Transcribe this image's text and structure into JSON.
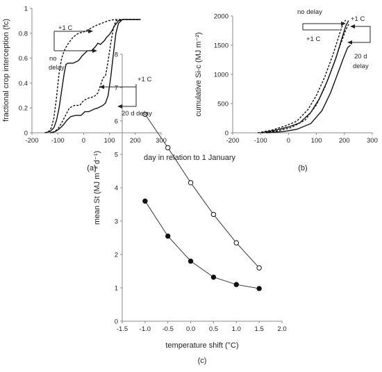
{
  "chart_data": [
    {
      "panel_label": "(a)",
      "type": "line",
      "xlabel": "day in relation to 1 January",
      "ylabel": "fractional crop interception (fc)",
      "xlim": [
        -200,
        300
      ],
      "ylim": [
        0,
        1
      ],
      "xticks": [
        -200,
        -100,
        0,
        100,
        200,
        300
      ],
      "yticks": [
        0,
        0.2,
        0.4,
        0.6,
        0.8,
        1
      ],
      "grid": false,
      "series": [
        {
          "style": "solid",
          "points": [
            [
              -150,
              0
            ],
            [
              -130,
              0.01
            ],
            [
              -115,
              0.04
            ],
            [
              -105,
              0.1
            ],
            [
              -95,
              0.2
            ],
            [
              -85,
              0.34
            ],
            [
              -75,
              0.48
            ],
            [
              -68,
              0.55
            ],
            [
              -60,
              0.56
            ],
            [
              -40,
              0.56
            ],
            [
              -20,
              0.58
            ],
            [
              -5,
              0.62
            ],
            [
              5,
              0.64
            ],
            [
              15,
              0.66
            ],
            [
              30,
              0.66
            ],
            [
              45,
              0.69
            ],
            [
              55,
              0.72
            ],
            [
              65,
              0.71
            ],
            [
              80,
              0.74
            ],
            [
              90,
              0.77
            ],
            [
              100,
              0.79
            ],
            [
              110,
              0.82
            ],
            [
              120,
              0.86
            ],
            [
              135,
              0.9
            ],
            [
              150,
              0.91
            ],
            [
              220,
              0.91
            ]
          ]
        },
        {
          "style": "dashed",
          "points": [
            [
              -150,
              0
            ],
            [
              -135,
              0.01
            ],
            [
              -125,
              0.04
            ],
            [
              -115,
              0.12
            ],
            [
              -105,
              0.28
            ],
            [
              -95,
              0.48
            ],
            [
              -85,
              0.6
            ],
            [
              -75,
              0.66
            ],
            [
              -65,
              0.7
            ],
            [
              -55,
              0.73
            ],
            [
              -40,
              0.77
            ],
            [
              -20,
              0.8
            ],
            [
              0,
              0.81
            ],
            [
              20,
              0.83
            ],
            [
              45,
              0.86
            ],
            [
              70,
              0.88
            ],
            [
              95,
              0.9
            ],
            [
              120,
              0.91
            ],
            [
              220,
              0.91
            ]
          ]
        },
        {
          "style": "solid",
          "points": [
            [
              -130,
              0
            ],
            [
              -110,
              0.01
            ],
            [
              -95,
              0.03
            ],
            [
              -80,
              0.06
            ],
            [
              -65,
              0.1
            ],
            [
              -50,
              0.13
            ],
            [
              -30,
              0.14
            ],
            [
              -10,
              0.14
            ],
            [
              5,
              0.17
            ],
            [
              20,
              0.17
            ],
            [
              40,
              0.19
            ],
            [
              55,
              0.2
            ],
            [
              75,
              0.22
            ],
            [
              85,
              0.24
            ],
            [
              95,
              0.3
            ],
            [
              105,
              0.45
            ],
            [
              115,
              0.63
            ],
            [
              125,
              0.8
            ],
            [
              135,
              0.88
            ],
            [
              150,
              0.91
            ],
            [
              170,
              0.91
            ],
            [
              220,
              0.91
            ]
          ]
        },
        {
          "style": "dashed",
          "points": [
            [
              -120,
              0
            ],
            [
              -100,
              0.03
            ],
            [
              -85,
              0.08
            ],
            [
              -70,
              0.14
            ],
            [
              -55,
              0.2
            ],
            [
              -35,
              0.22
            ],
            [
              -15,
              0.22
            ],
            [
              0,
              0.26
            ],
            [
              20,
              0.28
            ],
            [
              40,
              0.29
            ],
            [
              55,
              0.32
            ],
            [
              65,
              0.38
            ],
            [
              75,
              0.44
            ],
            [
              85,
              0.46
            ],
            [
              95,
              0.58
            ],
            [
              105,
              0.72
            ],
            [
              115,
              0.84
            ],
            [
              125,
              0.9
            ],
            [
              140,
              0.91
            ],
            [
              220,
              0.91
            ]
          ]
        }
      ],
      "annotations": [
        "+1 C",
        "no",
        "delay",
        "+1 C",
        "20 d delay"
      ]
    },
    {
      "panel_label": "(b)",
      "type": "line",
      "ylabel": "cumulative Si-c (MJ m⁻²)",
      "xlim": [
        -200,
        300
      ],
      "ylim": [
        0,
        2000
      ],
      "xticks": [
        -200,
        -100,
        0,
        100,
        200,
        300
      ],
      "yticks": [
        0,
        500,
        1000,
        1500,
        2000
      ],
      "grid": false,
      "series": [
        {
          "style": "solid",
          "points": [
            [
              -100,
              0
            ],
            [
              -50,
              40
            ],
            [
              0,
              100
            ],
            [
              40,
              170
            ],
            [
              80,
              350
            ],
            [
              110,
              580
            ],
            [
              140,
              900
            ],
            [
              170,
              1280
            ],
            [
              190,
              1600
            ],
            [
              205,
              1830
            ],
            [
              215,
              1920
            ]
          ]
        },
        {
          "style": "dashed",
          "points": [
            [
              -110,
              0
            ],
            [
              -60,
              45
            ],
            [
              -10,
              120
            ],
            [
              30,
              200
            ],
            [
              70,
              400
            ],
            [
              100,
              640
            ],
            [
              130,
              960
            ],
            [
              160,
              1350
            ],
            [
              180,
              1650
            ],
            [
              195,
              1870
            ],
            [
              205,
              1930
            ]
          ]
        },
        {
          "style": "dashed",
          "points": [
            [
              -95,
              0
            ],
            [
              -40,
              30
            ],
            [
              10,
              90
            ],
            [
              60,
              220
            ],
            [
              100,
              480
            ],
            [
              130,
              780
            ],
            [
              160,
              1150
            ],
            [
              185,
              1500
            ],
            [
              205,
              1760
            ],
            [
              218,
              1880
            ]
          ]
        },
        {
          "style": "solid",
          "points": [
            [
              -80,
              0
            ],
            [
              -20,
              20
            ],
            [
              30,
              60
            ],
            [
              80,
              160
            ],
            [
              120,
              380
            ],
            [
              150,
              680
            ],
            [
              175,
              1000
            ],
            [
              195,
              1260
            ],
            [
              212,
              1460
            ],
            [
              222,
              1500
            ]
          ]
        }
      ],
      "annotations": [
        "no delay",
        "+1 C",
        "+1 C",
        "20 d",
        "delay"
      ]
    },
    {
      "panel_label": "(c)",
      "type": "line",
      "xlabel": "temperature shift (°C)",
      "ylabel": "mean St (MJ m⁻² d⁻¹)",
      "xlim": [
        -1.5,
        2.0
      ],
      "ylim": [
        0,
        8
      ],
      "xticks": [
        "-1.5",
        "-1.0",
        "-0.5",
        "0.0",
        "0.5",
        "1.0",
        "1.5",
        "2.0"
      ],
      "yticks": [
        0,
        1,
        2,
        3,
        4,
        5,
        6,
        7,
        8
      ],
      "grid": false,
      "x": [
        -1.0,
        -0.5,
        0.0,
        0.5,
        1.0,
        1.5
      ],
      "series": [
        {
          "marker": "open",
          "values": [
            6.2,
            5.2,
            4.15,
            3.2,
            2.35,
            1.6
          ]
        },
        {
          "marker": "filled",
          "values": [
            3.6,
            2.55,
            1.8,
            1.32,
            1.1,
            0.98
          ]
        }
      ]
    }
  ]
}
